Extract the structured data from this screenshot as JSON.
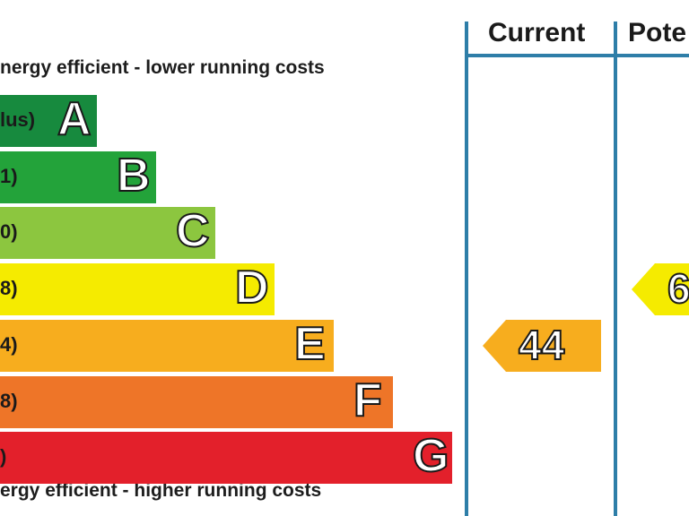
{
  "chart_data": {
    "type": "bar",
    "title": "",
    "top_caption": "nergy efficient - lower running costs",
    "bottom_caption": "ergy efficient - higher running costs",
    "columns": [
      "Current",
      "Pote"
    ],
    "bands": [
      {
        "letter": "A",
        "range": "lus)",
        "color": "#178a3e",
        "rank": 1
      },
      {
        "letter": "B",
        "range": "1)",
        "color": "#23a33a",
        "rank": 2
      },
      {
        "letter": "C",
        "range": "0)",
        "color": "#8cc63f",
        "rank": 3
      },
      {
        "letter": "D",
        "range": "8)",
        "color": "#f5eb00",
        "rank": 4
      },
      {
        "letter": "E",
        "range": "4)",
        "color": "#f7ad1e",
        "rank": 5
      },
      {
        "letter": "F",
        "range": "8)",
        "color": "#ee7528",
        "rank": 6
      },
      {
        "letter": "G",
        "range": ")",
        "color": "#e3202b",
        "rank": 7
      }
    ],
    "ratings": [
      {
        "column": "Current",
        "value": "44",
        "band": "E",
        "color": "#f7ad1e"
      },
      {
        "column": "Pote",
        "value": "6",
        "band": "D",
        "color": "#f5eb00"
      }
    ]
  }
}
